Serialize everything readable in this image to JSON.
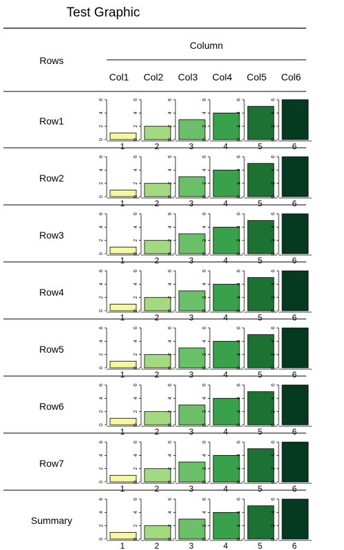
{
  "chart_data": {
    "type": "bar",
    "title": "Test Graphic",
    "row_header": "Rows",
    "column_header": "Column",
    "columns": [
      "Col1",
      "Col2",
      "Col3",
      "Col4",
      "Col5",
      "Col6"
    ],
    "categories": [
      "1",
      "2",
      "3",
      "4",
      "5",
      "6"
    ],
    "y_ticks": [
      "0",
      "2",
      "4",
      "6"
    ],
    "ylim": [
      0,
      6
    ],
    "rows": [
      {
        "label": "Row1",
        "values": [
          1,
          2,
          3,
          4,
          5,
          6
        ]
      },
      {
        "label": "Row2",
        "values": [
          1,
          2,
          3,
          4,
          5,
          6
        ]
      },
      {
        "label": "Row3",
        "values": [
          1,
          2,
          3,
          4,
          5,
          6
        ]
      },
      {
        "label": "Row4",
        "values": [
          1,
          2,
          3,
          4,
          5,
          6
        ]
      },
      {
        "label": "Row5",
        "values": [
          1,
          2,
          3,
          4,
          5,
          6
        ]
      },
      {
        "label": "Row6",
        "values": [
          1,
          2,
          3,
          4,
          5,
          6
        ]
      },
      {
        "label": "Row7",
        "values": [
          1,
          2,
          3,
          4,
          5,
          6
        ]
      },
      {
        "label": "Summary",
        "values": [
          1,
          2,
          3,
          4,
          5,
          6
        ]
      }
    ],
    "colors": [
      "#f6f8a0",
      "#a3da80",
      "#6abf68",
      "#39a04b",
      "#1d7233",
      "#053a20"
    ]
  }
}
